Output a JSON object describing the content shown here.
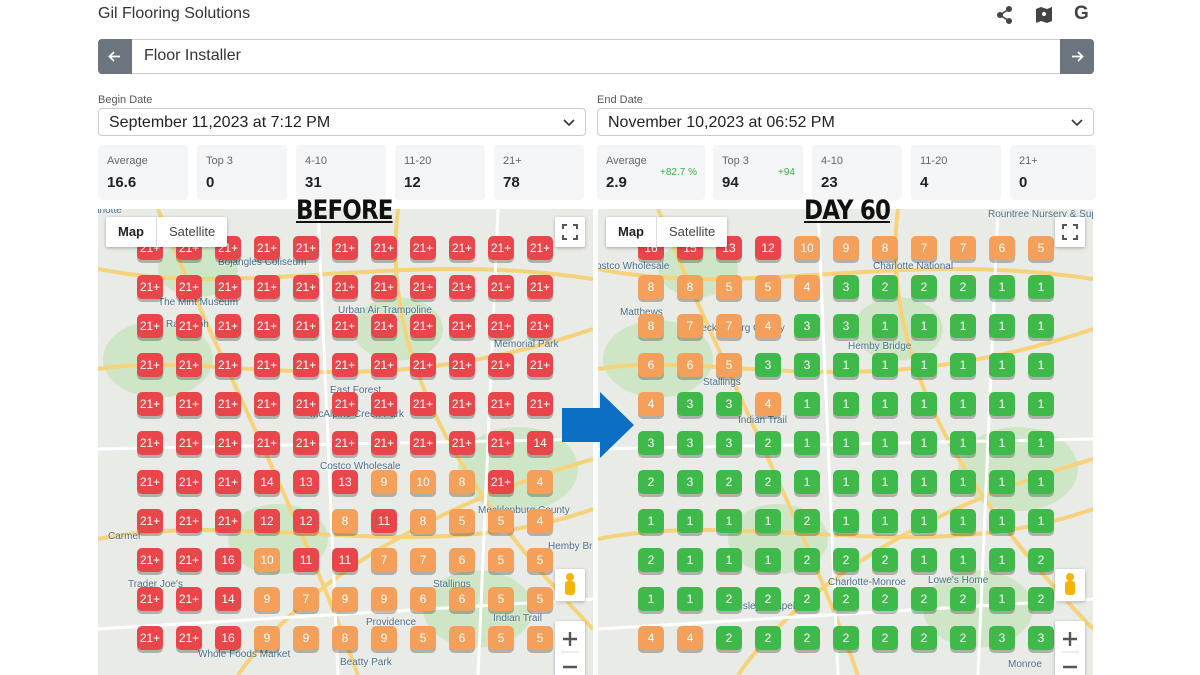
{
  "header": {
    "title": "Gil Flooring Solutions",
    "google_icon": "G"
  },
  "search": {
    "query": "Floor Installer"
  },
  "before": {
    "date_label": "Begin Date",
    "date": "September 11,2023 at 7:12 PM",
    "stats": [
      {
        "label": "Average",
        "value": "16.6"
      },
      {
        "label": "Top 3",
        "value": "0"
      },
      {
        "label": "4-10",
        "value": "31"
      },
      {
        "label": "11-20",
        "value": "12"
      },
      {
        "label": "21+",
        "value": "78"
      }
    ],
    "title": "BEFORE",
    "map_button": "Map",
    "satellite_button": "Satellite",
    "map_labels": [
      "arlotte",
      "Bojangles Coliseum",
      "The Mint Museum",
      "Urban Air Trampoline",
      "Memorial Park",
      "McAlpine Creek Park",
      "Costco Wholesale",
      "Mecklenburg County",
      "Hemby Bridge",
      "Stallings",
      "Indian Trail",
      "Trader Joe's",
      "Whole Foods Market",
      "Beatty Park",
      "Providence",
      "Randolph",
      "East Forest",
      "Carmel"
    ],
    "grid": [
      [
        "21+",
        "21+",
        "21+",
        "21+",
        "21+",
        "21+",
        "21+",
        "21+",
        "21+",
        "21+",
        "21+"
      ],
      [
        "21+",
        "21+",
        "21+",
        "21+",
        "21+",
        "21+",
        "21+",
        "21+",
        "21+",
        "21+",
        "21+"
      ],
      [
        "21+",
        "21+",
        "21+",
        "21+",
        "21+",
        "21+",
        "21+",
        "21+",
        "21+",
        "21+",
        "21+"
      ],
      [
        "21+",
        "21+",
        "21+",
        "21+",
        "21+",
        "21+",
        "21+",
        "21+",
        "21+",
        "21+",
        "21+"
      ],
      [
        "21+",
        "21+",
        "21+",
        "21+",
        "21+",
        "21+",
        "21+",
        "21+",
        "21+",
        "21+",
        "21+"
      ],
      [
        "21+",
        "21+",
        "21+",
        "21+",
        "21+",
        "21+",
        "21+",
        "21+",
        "21+",
        "21+",
        "14"
      ],
      [
        "21+",
        "21+",
        "21+",
        "14",
        "13",
        "13",
        "9",
        "10",
        "8",
        "21+",
        "4"
      ],
      [
        "21+",
        "21+",
        "21+",
        "12",
        "12",
        "8",
        "11",
        "8",
        "5",
        "5",
        "4"
      ],
      [
        "21+",
        "21+",
        "16",
        "10",
        "11",
        "11",
        "7",
        "7",
        "6",
        "5",
        "5"
      ],
      [
        "21+",
        "21+",
        "14",
        "9",
        "7",
        "9",
        "9",
        "6",
        "6",
        "5",
        "5"
      ],
      [
        "21+",
        "21+",
        "16",
        "9",
        "9",
        "8",
        "9",
        "5",
        "6",
        "5",
        "5"
      ]
    ]
  },
  "after": {
    "date_label": "End Date",
    "date": "November 10,2023 at 06:52 PM",
    "stats": [
      {
        "label": "Average",
        "value": "2.9",
        "change": "+82.7 %"
      },
      {
        "label": "Top 3",
        "value": "94",
        "change": "+94"
      },
      {
        "label": "4-10",
        "value": "23"
      },
      {
        "label": "11-20",
        "value": "4"
      },
      {
        "label": "21+",
        "value": "0"
      }
    ],
    "title": "DAY 60",
    "map_button": "Map",
    "satellite_button": "Satellite",
    "map_labels": [
      "Rountree Nursery & Supply",
      "Charlotte National",
      "ostco Wholesale",
      "Mecklenburg County",
      "Hemby Bridge",
      "Stallings",
      "Indian Trail",
      "Charlotte-Monroe",
      "Lowe's Home",
      "Monroe",
      "Wesley Chapel",
      "Matthews"
    ],
    "grid": [
      [
        "16",
        "15",
        "13",
        "12",
        "10",
        "9",
        "8",
        "7",
        "7",
        "6",
        "5"
      ],
      [
        "8",
        "8",
        "5",
        "5",
        "4",
        "3",
        "2",
        "2",
        "2",
        "1",
        "1"
      ],
      [
        "8",
        "7",
        "7",
        "4",
        "3",
        "3",
        "1",
        "1",
        "1",
        "1",
        "1"
      ],
      [
        "6",
        "6",
        "5",
        "3",
        "3",
        "1",
        "1",
        "1",
        "1",
        "1",
        "1"
      ],
      [
        "4",
        "3",
        "3",
        "4",
        "1",
        "1",
        "1",
        "1",
        "1",
        "1",
        "1"
      ],
      [
        "3",
        "3",
        "3",
        "2",
        "1",
        "1",
        "1",
        "1",
        "1",
        "1",
        "1"
      ],
      [
        "2",
        "3",
        "2",
        "2",
        "1",
        "1",
        "1",
        "1",
        "1",
        "1",
        "1"
      ],
      [
        "1",
        "1",
        "1",
        "1",
        "2",
        "1",
        "1",
        "1",
        "1",
        "1",
        "1"
      ],
      [
        "2",
        "1",
        "1",
        "1",
        "2",
        "2",
        "2",
        "1",
        "1",
        "1",
        "2"
      ],
      [
        "1",
        "1",
        "2",
        "2",
        "2",
        "2",
        "2",
        "2",
        "2",
        "1",
        "2"
      ],
      [
        "4",
        "4",
        "2",
        "2",
        "2",
        "2",
        "2",
        "2",
        "2",
        "3",
        "3"
      ]
    ]
  }
}
